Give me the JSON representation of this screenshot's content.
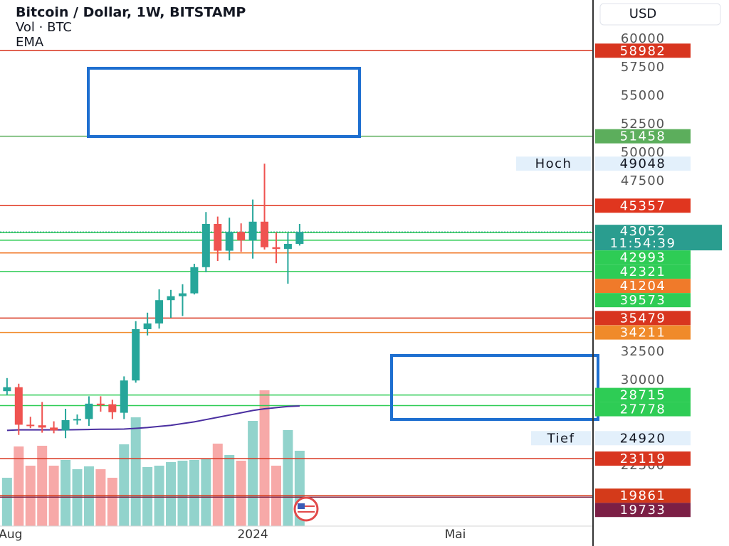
{
  "chart_data": {
    "type": "candlestick",
    "title": "Bitcoin / Dollar, 1W, BITSTAMP",
    "volume_label": "Vol · BTC",
    "ema_label": "EMA",
    "currency": "USD",
    "x": [
      0,
      1,
      2,
      3,
      4,
      5,
      6,
      7,
      8,
      9,
      10,
      11,
      12,
      13,
      14,
      15,
      16,
      17,
      18,
      19,
      20,
      21,
      22,
      23,
      24,
      25
    ],
    "open": [
      29050,
      29400,
      26100,
      26050,
      25850,
      25600,
      26500,
      26600,
      27950,
      27900,
      27150,
      29990,
      34500,
      35000,
      37050,
      37400,
      37650,
      39950,
      43750,
      41400,
      43050,
      42300,
      43950,
      41700,
      41550,
      42000
    ],
    "high": [
      30200,
      29700,
      26800,
      28100,
      26400,
      27500,
      27000,
      28600,
      28600,
      28300,
      30350,
      35200,
      35950,
      38000,
      37950,
      38450,
      40250,
      44800,
      44400,
      44300,
      43800,
      45900,
      49048,
      43000,
      42950,
      43750
    ],
    "low": [
      28700,
      25200,
      25800,
      25400,
      25350,
      24920,
      26100,
      26000,
      27250,
      26600,
      26600,
      29800,
      33950,
      34550,
      35500,
      35650,
      37550,
      39500,
      40500,
      40550,
      41300,
      40700,
      41500,
      40300,
      38500,
      41850
    ],
    "close": [
      29400,
      26100,
      26050,
      25850,
      25600,
      26500,
      26600,
      27950,
      27900,
      27200,
      29990,
      34500,
      35000,
      37050,
      37400,
      37650,
      39950,
      43750,
      41400,
      43050,
      42300,
      43950,
      41700,
      41550,
      42000,
      43052
    ],
    "volume": [
      6800,
      11200,
      8500,
      11300,
      8500,
      9300,
      8000,
      8400,
      8000,
      6800,
      11500,
      15300,
      8300,
      8500,
      9000,
      9200,
      9300,
      9500,
      11600,
      10000,
      9200,
      14800,
      19100,
      8500,
      13500,
      10600
    ],
    "ema": [
      25600,
      25650,
      25650,
      25650,
      25650,
      25650,
      25660,
      25680,
      25700,
      25700,
      25720,
      25780,
      25850,
      25950,
      26050,
      26200,
      26350,
      26550,
      26750,
      26950,
      27150,
      27350,
      27500,
      27600,
      27700,
      27750
    ],
    "up_color": "#26a69a",
    "down_color": "#ef5350",
    "volume_up_color": "#92d3cc",
    "volume_down_color": "#f7a9a8",
    "ema_color": "#4a2fa0",
    "xlim": [
      -0.6,
      50.07
    ],
    "xticks": [
      {
        "value": 0.3,
        "label": "Aug"
      },
      {
        "value": 21,
        "label": "2024"
      },
      {
        "value": 38.3,
        "label": "Mai"
      }
    ],
    "ylim": [
      17188,
      63437
    ],
    "yticks": [
      60000,
      57500,
      55000,
      52500,
      50000,
      47500,
      32500,
      30000,
      22500
    ],
    "volume_lim": [
      0,
      40000
    ],
    "levels": [
      {
        "value": 58982,
        "color": "#d8351f"
      },
      {
        "value": 51458,
        "color": "#5cae5c"
      },
      {
        "value": 45357,
        "color": "#e0361f"
      },
      {
        "value": 42993,
        "color": "#2ecc55"
      },
      {
        "value": 42321,
        "color": "#2ecc55"
      },
      {
        "value": 41204,
        "color": "#f07a2a"
      },
      {
        "value": 39573,
        "color": "#2ecc55"
      },
      {
        "value": 35479,
        "color": "#d8351f"
      },
      {
        "value": 34211,
        "color": "#f08a2a"
      },
      {
        "value": 28715,
        "color": "#2ecc55"
      },
      {
        "value": 27778,
        "color": "#2ecc55"
      },
      {
        "value": 23119,
        "color": "#d8351f"
      },
      {
        "value": 19861,
        "color": "#d43a1a"
      },
      {
        "value": 19733,
        "color": "#7b1f45"
      }
    ],
    "current": {
      "value": 43052,
      "countdown": "11:54:39",
      "color": "#2a9d8f"
    },
    "high_marker": {
      "label": "Hoch",
      "value": 49048
    },
    "low_marker": {
      "label": "Tief",
      "value": 24920
    }
  }
}
